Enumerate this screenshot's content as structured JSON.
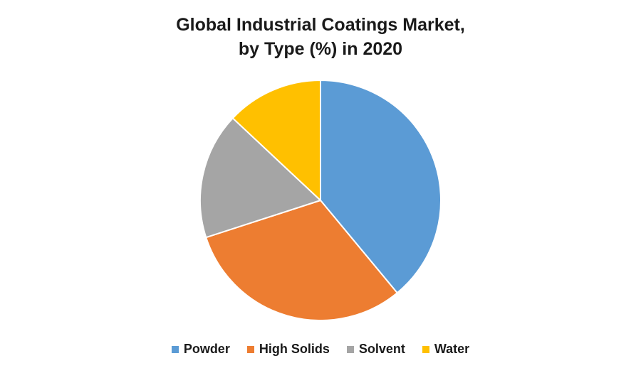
{
  "chart_data": {
    "type": "pie",
    "title_lines": [
      "Global Industrial Coatings Market,",
      "by Type (%) in 2020"
    ],
    "categories": [
      "Powder",
      "High Solids",
      "Solvent",
      "Water"
    ],
    "values": [
      39,
      31,
      17,
      13
    ],
    "unit": "%",
    "colors": [
      "#5B9BD5",
      "#ED7D31",
      "#A5A5A5",
      "#FFC000"
    ],
    "legend_position": "bottom",
    "start_angle_deg": 0,
    "direction": "clockwise"
  }
}
